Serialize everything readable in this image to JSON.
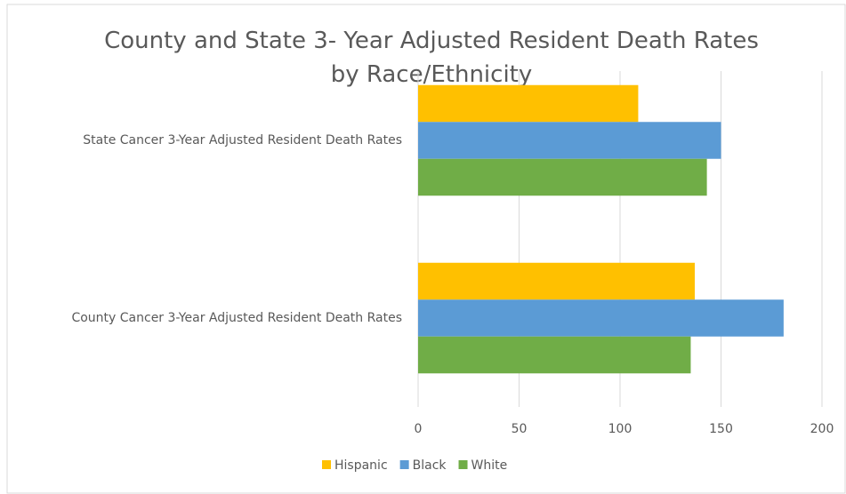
{
  "chart_data": {
    "type": "bar",
    "orientation": "horizontal",
    "title": "County and State 3- Year Adjusted Resident Death Rates by Race/Ethnicity",
    "categories": [
      "State Cancer 3-Year Adjusted Resident Death Rates",
      "County Cancer 3-Year Adjusted Resident Death Rates"
    ],
    "series": [
      {
        "name": "Hispanic",
        "color": "#ffc000",
        "values": [
          109,
          137
        ]
      },
      {
        "name": "Black",
        "color": "#5b9bd5",
        "values": [
          150,
          181
        ]
      },
      {
        "name": "White",
        "color": "#70ad47",
        "values": [
          143,
          135
        ]
      }
    ],
    "xlim": [
      0,
      200
    ],
    "xticks": [
      0,
      50,
      100,
      150,
      200
    ],
    "grid": true,
    "legend": "bottom"
  }
}
